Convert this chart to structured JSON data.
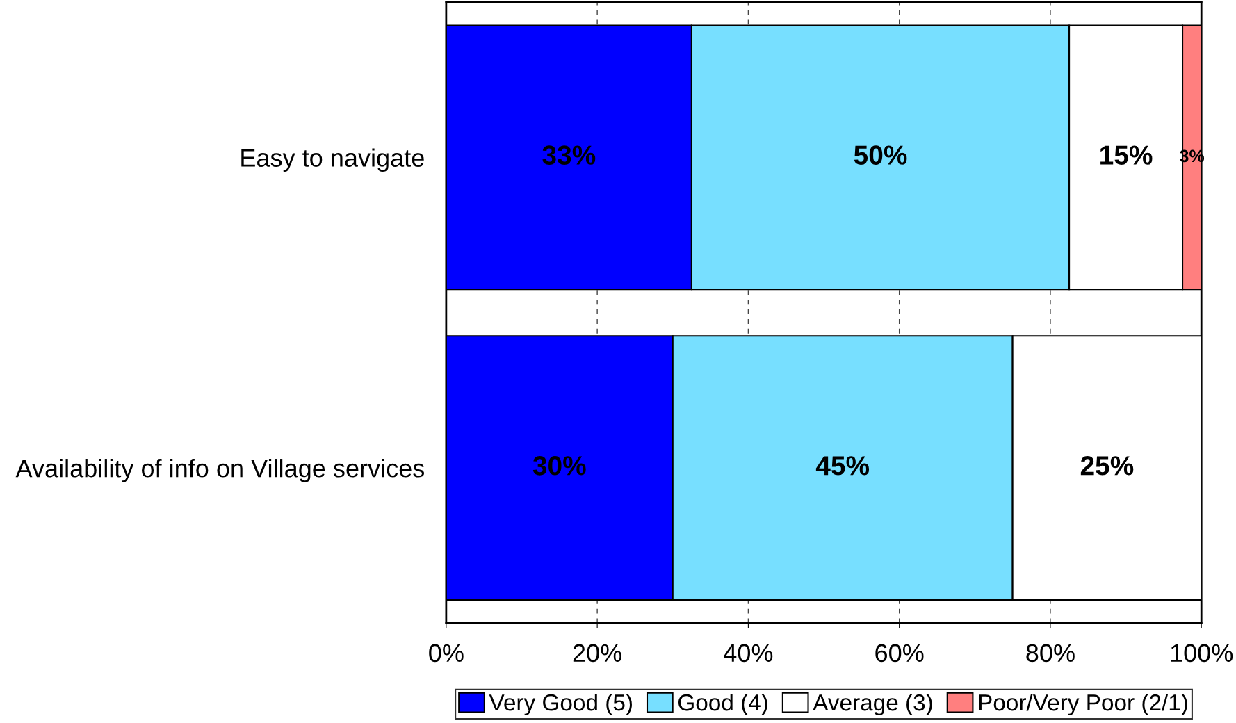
{
  "chart_data": {
    "type": "bar",
    "orientation": "horizontal",
    "stacked": true,
    "categories": [
      "Easy to navigate",
      "Availability of info on Village services"
    ],
    "series": [
      {
        "name": "Very Good (5)",
        "color": "#0000ff",
        "values": [
          32.5,
          30
        ],
        "value_labels": [
          "33%",
          "30%"
        ]
      },
      {
        "name": "Good (4)",
        "color": "#77dfff",
        "values": [
          50,
          45
        ],
        "value_labels": [
          "50%",
          "45%"
        ]
      },
      {
        "name": "Average (3)",
        "color": "#ffffff",
        "values": [
          15,
          25
        ],
        "value_labels": [
          "15%",
          "25%"
        ]
      },
      {
        "name": "Poor/Very Poor (2/1)",
        "color": "#ff7f7f",
        "values": [
          2.5,
          null
        ],
        "value_labels": [
          "3%",
          null
        ]
      }
    ],
    "xlim": [
      0,
      100
    ],
    "xticks": [
      {
        "value": 0,
        "label": "0%"
      },
      {
        "value": 20,
        "label": "20%"
      },
      {
        "value": 40,
        "label": "40%"
      },
      {
        "value": 60,
        "label": "60%"
      },
      {
        "value": 80,
        "label": "80%"
      },
      {
        "value": 100,
        "label": "100%"
      }
    ],
    "grid": "x",
    "legend": "bottom"
  }
}
